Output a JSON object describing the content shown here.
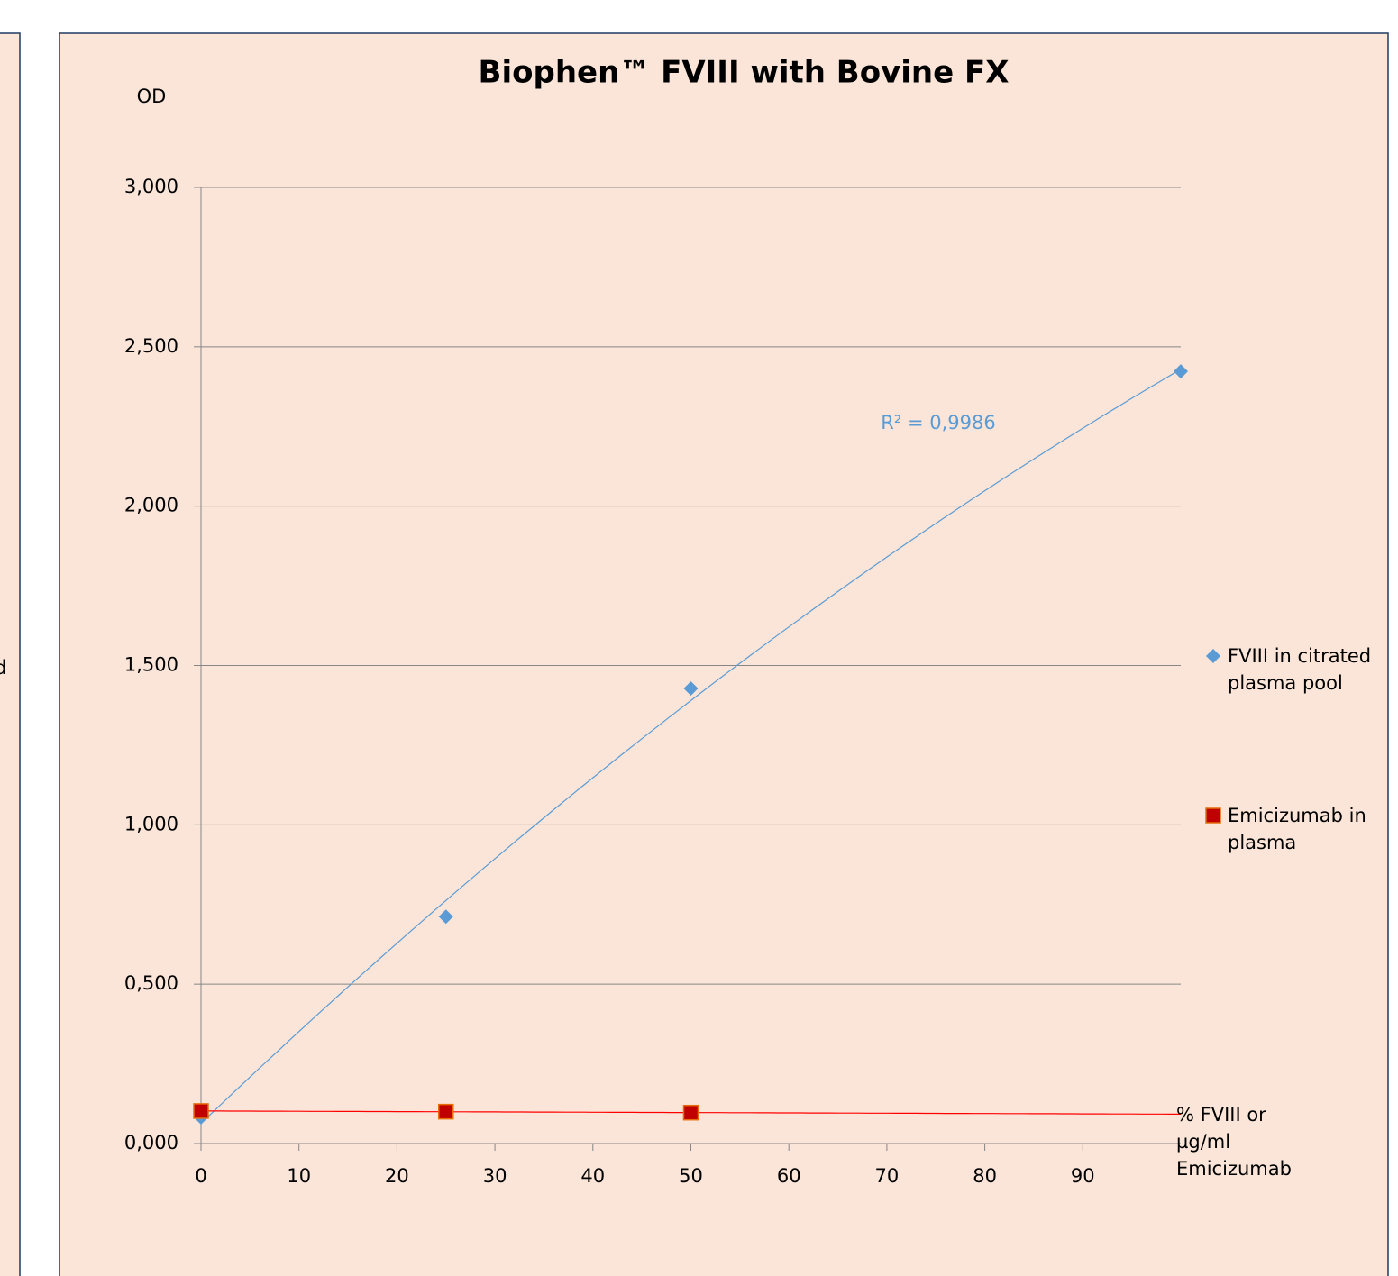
{
  "left_panel_text": "d",
  "chart_data": {
    "type": "scatter",
    "title": "Biophen™ FVIII with Bovine FX",
    "y_label": "OD",
    "x_label": "% FVIII or µg/ml Emicizumab",
    "annotation": "R² = 0,9986",
    "xlim": [
      0,
      100
    ],
    "xticks": [
      0,
      10,
      20,
      30,
      40,
      50,
      60,
      70,
      80,
      90
    ],
    "ylim": [
      0,
      3
    ],
    "yticks": [
      {
        "value": 0,
        "label": "0,000"
      },
      {
        "value": 0.5,
        "label": "0,500"
      },
      {
        "value": 1,
        "label": "1,000"
      },
      {
        "value": 1.5,
        "label": "1,500"
      },
      {
        "value": 2,
        "label": "2,000"
      },
      {
        "value": 2.5,
        "label": "2,500"
      },
      {
        "value": 3,
        "label": "3,000"
      }
    ],
    "grid": true,
    "legend": "right",
    "series": [
      {
        "name": "FVIII in citrated plasma pool",
        "color": "#5b9bd5",
        "marker": "diamond",
        "trendline": "poly2",
        "x": [
          0,
          25,
          50,
          100
        ],
        "values": [
          0.082,
          0.712,
          1.428,
          2.423
        ]
      },
      {
        "name": "Emicizumab in plasma",
        "color": "#c00000",
        "marker": "square",
        "trendline": "linear",
        "x": [
          0,
          25,
          50
        ],
        "values": [
          0.102,
          0.1,
          0.097
        ]
      }
    ]
  }
}
